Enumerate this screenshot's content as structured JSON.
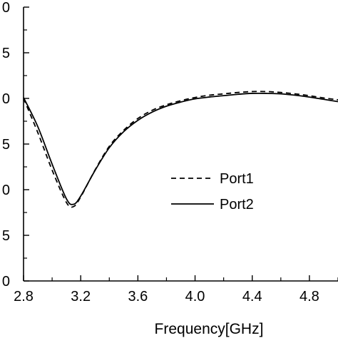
{
  "chart_data": {
    "type": "line",
    "title": "",
    "xlabel": "Frequency[GHz]",
    "ylabel": "",
    "xlim": [
      2.8,
      5.0
    ],
    "ylim": [
      0,
      6
    ],
    "x_ticks": [
      2.8,
      3.2,
      3.6,
      4.0,
      4.4,
      4.8
    ],
    "x_tick_labels": [
      "2.8",
      "3.2",
      "3.6",
      "4.0",
      "4.4",
      "4.8"
    ],
    "y_ticks": [
      0,
      1,
      2,
      3,
      4,
      5,
      6
    ],
    "y_tick_labels": [
      "0",
      "5",
      "0",
      "5",
      "0",
      "5",
      "0"
    ],
    "grid": false,
    "legend_position": "center-right",
    "series": [
      {
        "name": "Port1",
        "line_style": "dashed",
        "color": "#000000",
        "x": [
          2.8,
          2.9,
          3.0,
          3.1,
          3.15,
          3.2,
          3.3,
          3.4,
          3.5,
          3.6,
          3.7,
          3.8,
          3.9,
          4.0,
          4.1,
          4.2,
          4.3,
          4.4,
          4.5,
          4.6,
          4.7,
          4.8,
          4.9,
          5.0
        ],
        "values": [
          4.0,
          3.25,
          2.43,
          1.72,
          1.63,
          1.84,
          2.43,
          2.95,
          3.3,
          3.56,
          3.74,
          3.86,
          3.95,
          4.02,
          4.07,
          4.1,
          4.13,
          4.15,
          4.15,
          4.13,
          4.1,
          4.06,
          4.01,
          3.97
        ]
      },
      {
        "name": "Port2",
        "line_style": "solid",
        "color": "#000000",
        "x": [
          2.8,
          2.9,
          3.0,
          3.1,
          3.15,
          3.2,
          3.3,
          3.4,
          3.5,
          3.6,
          3.7,
          3.8,
          3.9,
          4.0,
          4.1,
          4.2,
          4.3,
          4.4,
          4.5,
          4.6,
          4.7,
          4.8,
          4.9,
          5.0
        ],
        "values": [
          4.02,
          3.38,
          2.56,
          1.8,
          1.68,
          1.86,
          2.42,
          2.92,
          3.27,
          3.52,
          3.7,
          3.83,
          3.92,
          3.99,
          4.03,
          4.06,
          4.09,
          4.11,
          4.11,
          4.1,
          4.07,
          4.03,
          3.98,
          3.93
        ]
      }
    ]
  }
}
